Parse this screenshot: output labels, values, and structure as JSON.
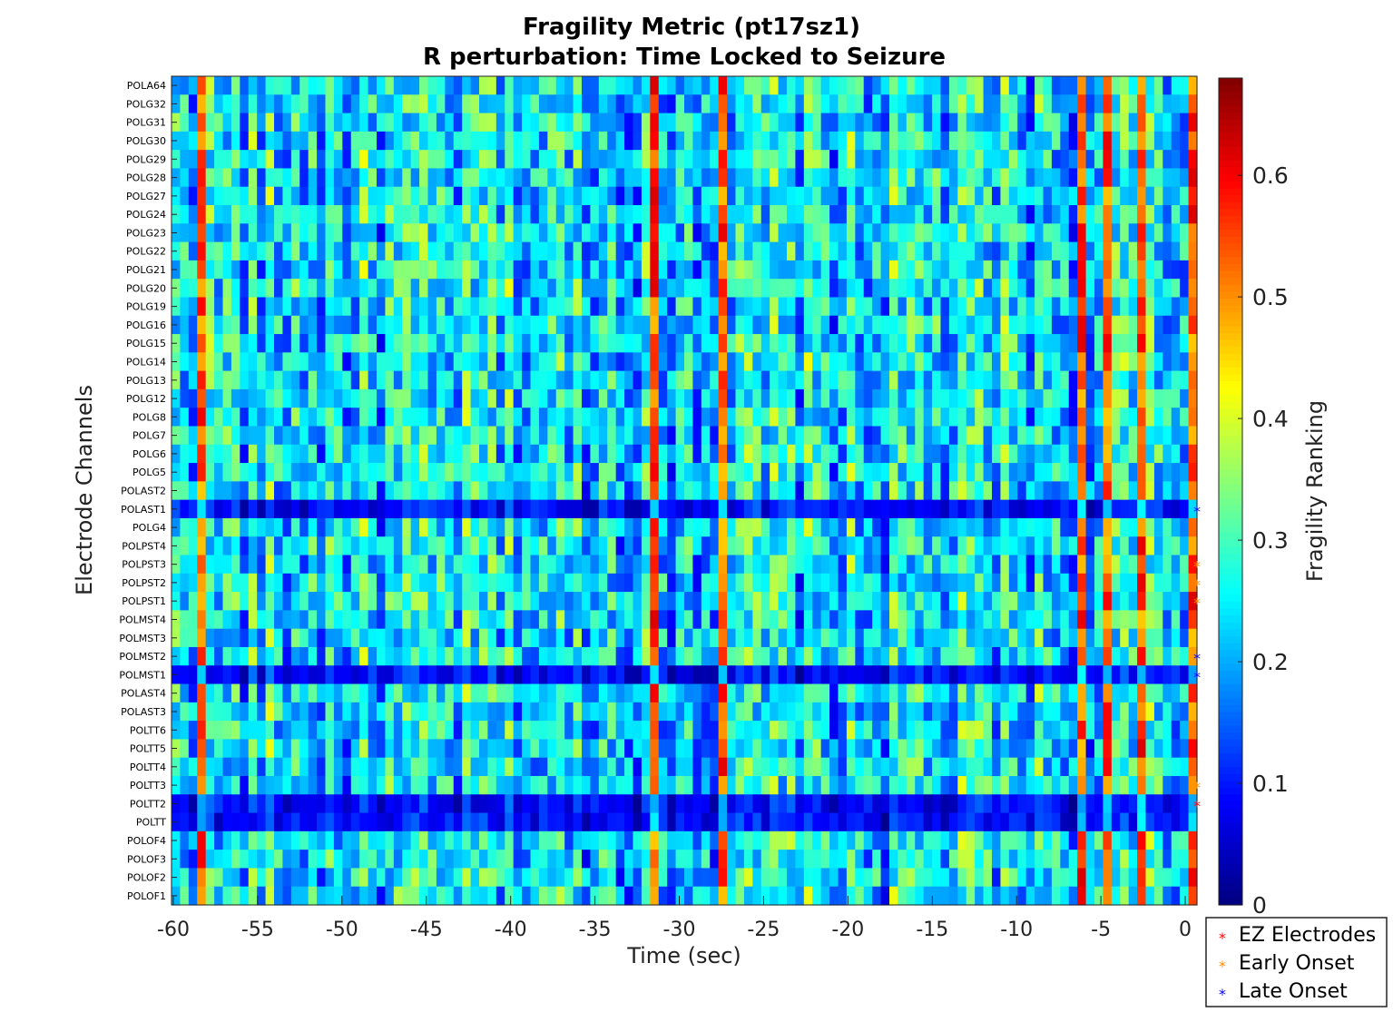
{
  "chart_data": {
    "type": "heatmap",
    "title": [
      "Fragility Metric (pt17sz1)",
      "R perturbation:  Time Locked to Seizure"
    ],
    "xlabel": "Time (sec)",
    "ylabel": "Electrode Channels",
    "colorbar_label": "Fragility Ranking",
    "colormap": "jet",
    "xlim": [
      -60,
      0
    ],
    "x_ticks": [
      -60,
      -55,
      -50,
      -45,
      -40,
      -35,
      -30,
      -25,
      -20,
      -15,
      -10,
      -5,
      0
    ],
    "clim": [
      0,
      0.68
    ],
    "colorbar_ticks": [
      0,
      0.1,
      0.2,
      0.3,
      0.4,
      0.5,
      0.6
    ],
    "time_bins": 120,
    "channels": [
      {
        "name": "POLA64",
        "group": ""
      },
      {
        "name": "POLG32",
        "group": ""
      },
      {
        "name": "POLG31",
        "group": ""
      },
      {
        "name": "POLG30",
        "group": ""
      },
      {
        "name": "POLG29",
        "group": ""
      },
      {
        "name": "POLG28",
        "group": ""
      },
      {
        "name": "POLG27",
        "group": ""
      },
      {
        "name": "POLG24",
        "group": ""
      },
      {
        "name": "POLG23",
        "group": ""
      },
      {
        "name": "POLG22",
        "group": ""
      },
      {
        "name": "POLG21",
        "group": ""
      },
      {
        "name": "POLG20",
        "group": ""
      },
      {
        "name": "POLG19",
        "group": ""
      },
      {
        "name": "POLG16",
        "group": ""
      },
      {
        "name": "POLG15",
        "group": ""
      },
      {
        "name": "POLG14",
        "group": ""
      },
      {
        "name": "POLG13",
        "group": ""
      },
      {
        "name": "POLG12",
        "group": ""
      },
      {
        "name": "POLG8",
        "group": ""
      },
      {
        "name": "POLG7",
        "group": ""
      },
      {
        "name": "POLG6",
        "group": ""
      },
      {
        "name": "POLG5",
        "group": ""
      },
      {
        "name": "POLAST2",
        "group": ""
      },
      {
        "name": "POLAST1",
        "group": "late"
      },
      {
        "name": "POLG4",
        "group": ""
      },
      {
        "name": "POLPST4",
        "group": ""
      },
      {
        "name": "POLPST3",
        "group": "early"
      },
      {
        "name": "POLPST2",
        "group": "early"
      },
      {
        "name": "POLPST1",
        "group": "early"
      },
      {
        "name": "POLMST4",
        "group": ""
      },
      {
        "name": "POLMST3",
        "group": ""
      },
      {
        "name": "POLMST2",
        "group": "late"
      },
      {
        "name": "POLMST1",
        "group": "late"
      },
      {
        "name": "POLAST4",
        "group": ""
      },
      {
        "name": "POLAST3",
        "group": ""
      },
      {
        "name": "POLTT6",
        "group": ""
      },
      {
        "name": "POLTT5",
        "group": ""
      },
      {
        "name": "POLTT4",
        "group": ""
      },
      {
        "name": "POLTT3",
        "group": "early"
      },
      {
        "name": "POLTT2",
        "group": "ez"
      },
      {
        "name": "POLTT",
        "group": ""
      },
      {
        "name": "POLOF4",
        "group": ""
      },
      {
        "name": "POLOF3",
        "group": ""
      },
      {
        "name": "POLOF2",
        "group": ""
      },
      {
        "name": "POLOF1",
        "group": ""
      }
    ],
    "legend": [
      {
        "key": "ez",
        "label": "EZ Electrodes",
        "color": "#ff0000"
      },
      {
        "key": "early",
        "label": "Early Onset",
        "color": "#ff8c00"
      },
      {
        "key": "late",
        "label": "Late Onset",
        "color": "#0000ff"
      }
    ],
    "high_fragility_columns_sec": [
      -58.5,
      -32.0,
      -28.0,
      -7.0,
      -5.5,
      -3.5,
      -0.5
    ],
    "low_fragility_rows": [
      "POLAST1",
      "POLMST1",
      "POLTT2",
      "POLTT"
    ],
    "baseline_fragility": 0.24
  }
}
